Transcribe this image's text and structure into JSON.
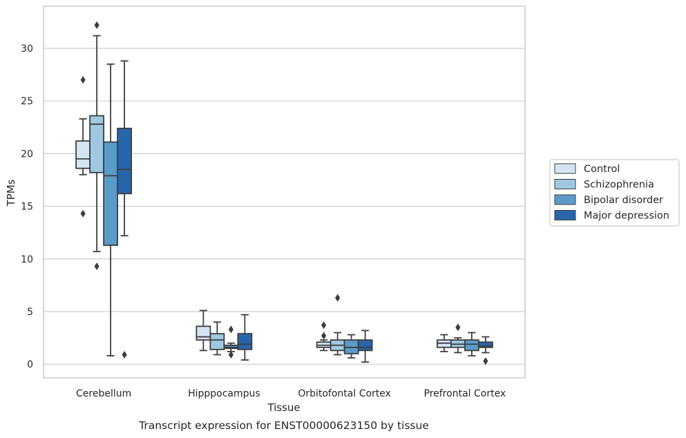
{
  "caption": "Transcript expression for ENST00000623150 by tissue",
  "chart_data": {
    "type": "boxplot",
    "xlabel": "Tissue",
    "ylabel": "TPMs",
    "categories": [
      "Cerebellum",
      "Hipppocampus",
      "Orbitofontal Cortex",
      "Prefrontal Cortex"
    ],
    "ylim": [
      -1.3,
      34
    ],
    "yticks": [
      0,
      5,
      10,
      15,
      20,
      25,
      30
    ],
    "grid": "horizontal",
    "legend_position": "right",
    "series": [
      {
        "name": "Control",
        "color": "#d4e4f3",
        "boxes": [
          {
            "whislo": 18.0,
            "q1": 18.6,
            "med": 19.5,
            "q3": 21.2,
            "whishi": 23.3,
            "fliers": [
              27.0,
              14.3
            ]
          },
          {
            "whislo": 1.3,
            "q1": 2.3,
            "med": 2.6,
            "q3": 3.6,
            "whishi": 5.1,
            "fliers": []
          },
          {
            "whislo": 1.3,
            "q1": 1.6,
            "med": 1.8,
            "q3": 2.1,
            "whishi": 2.3,
            "fliers": [
              3.7,
              2.7
            ]
          },
          {
            "whislo": 1.2,
            "q1": 1.6,
            "med": 2.0,
            "q3": 2.3,
            "whishi": 2.8,
            "fliers": []
          }
        ]
      },
      {
        "name": "Schizophrenia",
        "color": "#9ec9e0",
        "boxes": [
          {
            "whislo": 10.7,
            "q1": 18.2,
            "med": 22.8,
            "q3": 23.6,
            "whishi": 31.2,
            "fliers": [
              32.2,
              9.3
            ]
          },
          {
            "whislo": 0.9,
            "q1": 1.4,
            "med": 2.3,
            "q3": 2.9,
            "whishi": 4.0,
            "fliers": []
          },
          {
            "whislo": 0.9,
            "q1": 1.3,
            "med": 1.8,
            "q3": 2.3,
            "whishi": 3.0,
            "fliers": [
              6.3
            ]
          },
          {
            "whislo": 1.1,
            "q1": 1.6,
            "med": 1.9,
            "q3": 2.3,
            "whishi": 2.5,
            "fliers": [
              3.5
            ]
          }
        ]
      },
      {
        "name": "Bipolar disorder",
        "color": "#5a9bca",
        "boxes": [
          {
            "whislo": 0.8,
            "q1": 11.3,
            "med": 17.9,
            "q3": 21.1,
            "whishi": 28.5,
            "fliers": []
          },
          {
            "whislo": 1.2,
            "q1": 1.5,
            "med": 1.6,
            "q3": 1.8,
            "whishi": 2.0,
            "fliers": [
              3.3,
              0.9
            ]
          },
          {
            "whislo": 0.6,
            "q1": 1.0,
            "med": 1.6,
            "q3": 2.3,
            "whishi": 2.8,
            "fliers": []
          },
          {
            "whislo": 0.8,
            "q1": 1.3,
            "med": 1.9,
            "q3": 2.3,
            "whishi": 3.0,
            "fliers": []
          }
        ]
      },
      {
        "name": "Major depression",
        "color": "#2866ab",
        "boxes": [
          {
            "whislo": 12.2,
            "q1": 16.2,
            "med": 18.5,
            "q3": 22.4,
            "whishi": 28.8,
            "fliers": [
              0.9
            ]
          },
          {
            "whislo": 0.4,
            "q1": 1.4,
            "med": 1.9,
            "q3": 2.9,
            "whishi": 4.7,
            "fliers": []
          },
          {
            "whislo": 0.2,
            "q1": 1.3,
            "med": 1.6,
            "q3": 2.3,
            "whishi": 3.2,
            "fliers": []
          },
          {
            "whislo": 1.1,
            "q1": 1.6,
            "med": 1.7,
            "q3": 2.1,
            "whishi": 2.6,
            "fliers": [
              0.3
            ]
          }
        ]
      }
    ]
  }
}
